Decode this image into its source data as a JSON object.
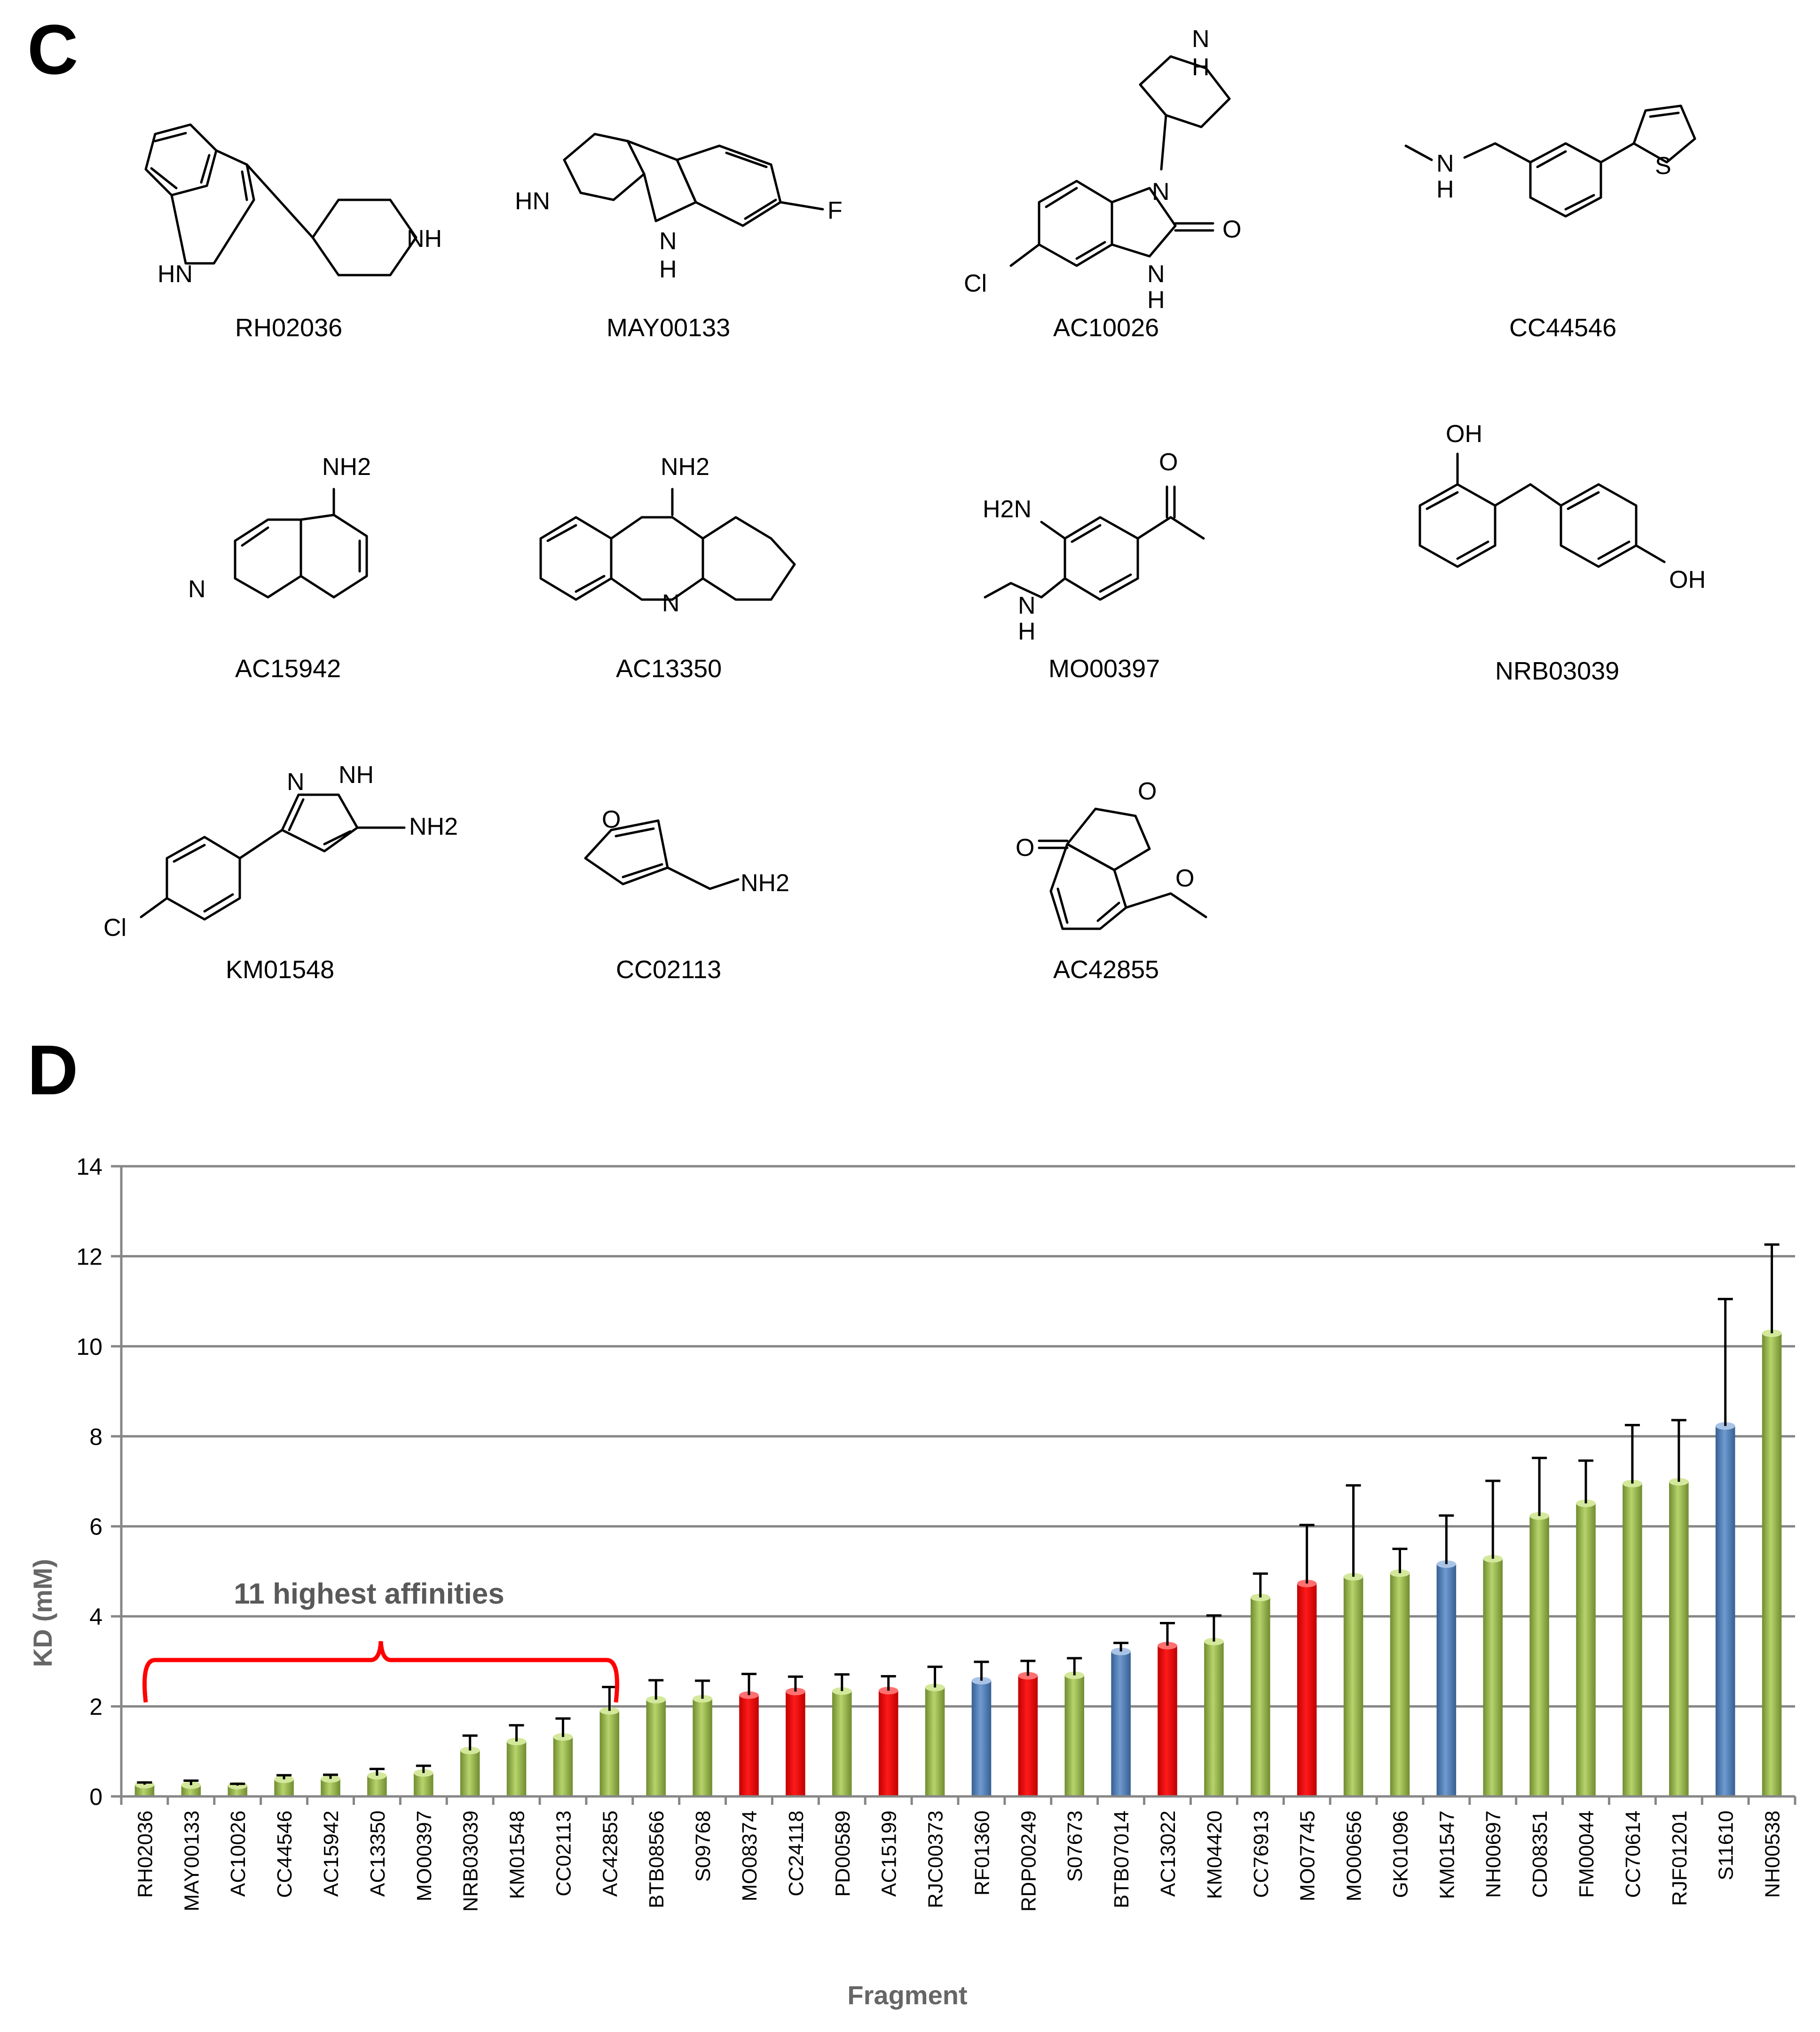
{
  "panel_c": {
    "letter": "C",
    "molecules": [
      {
        "id": "RH02036",
        "atoms": [
          "NH",
          "HN"
        ]
      },
      {
        "id": "MAY00133",
        "atoms": [
          "HN",
          "F",
          "N",
          "H"
        ]
      },
      {
        "id": "AC10026",
        "atoms": [
          "N",
          "H",
          "N",
          "Cl",
          "O",
          "N",
          "H"
        ]
      },
      {
        "id": "CC44546",
        "atoms": [
          "N",
          "H",
          "S"
        ]
      },
      {
        "id": "AC15942",
        "atoms": [
          "NH2",
          "N"
        ]
      },
      {
        "id": "AC13350",
        "atoms": [
          "NH2",
          "N"
        ]
      },
      {
        "id": "MO00397",
        "atoms": [
          "O",
          "H2N",
          "N",
          "H"
        ]
      },
      {
        "id": "NRB03039",
        "atoms": [
          "OH",
          "OH"
        ]
      },
      {
        "id": "KM01548",
        "atoms": [
          "N",
          "NH",
          "NH2",
          "Cl"
        ]
      },
      {
        "id": "CC02113",
        "atoms": [
          "O",
          "NH2"
        ]
      },
      {
        "id": "AC42855",
        "atoms": [
          "O",
          "O",
          "O"
        ]
      }
    ]
  },
  "panel_d": {
    "letter": "D",
    "annotation": "11 highest affinities",
    "colors": {
      "green": "#9bbb59",
      "red": "#ff0000",
      "blue": "#4f81bd",
      "grid": "#868686",
      "error": "#000000",
      "brace": "#ff0000"
    }
  },
  "chart_data": {
    "type": "bar",
    "title": "",
    "xlabel": "Fragment",
    "ylabel": "KD (mM)",
    "ylim": [
      0,
      14
    ],
    "yticks": [
      0,
      2,
      4,
      6,
      8,
      10,
      12,
      14
    ],
    "grid": true,
    "categories": [
      "RH02036",
      "MAY00133",
      "AC10026",
      "CC44546",
      "AC15942",
      "AC13350",
      "MO00397",
      "NRB03039",
      "KM01548",
      "CC02113",
      "AC42855",
      "BTB08566",
      "S09768",
      "MO08374",
      "CC24118",
      "PD00589",
      "AC15199",
      "RJC00373",
      "RF01360",
      "RDP00249",
      "S07673",
      "BTB07014",
      "AC13022",
      "KM04420",
      "CC76913",
      "MO07745",
      "MO00656",
      "GK01096",
      "KM01547",
      "NH00697",
      "CD08351",
      "FM00044",
      "CC70614",
      "RJF01201",
      "S11610",
      "NH00538"
    ],
    "values": [
      0.26,
      0.25,
      0.24,
      0.38,
      0.39,
      0.46,
      0.52,
      1.02,
      1.22,
      1.32,
      1.9,
      2.15,
      2.17,
      2.25,
      2.33,
      2.34,
      2.35,
      2.42,
      2.57,
      2.68,
      2.69,
      3.22,
      3.35,
      3.44,
      4.42,
      4.73,
      4.88,
      4.96,
      5.16,
      5.28,
      6.23,
      6.51,
      6.95,
      6.99,
      8.23,
      10.29
    ],
    "errors": [
      0.05,
      0.1,
      0.04,
      0.09,
      0.09,
      0.15,
      0.16,
      0.33,
      0.36,
      0.41,
      0.53,
      0.43,
      0.4,
      0.47,
      0.33,
      0.37,
      0.32,
      0.46,
      0.42,
      0.33,
      0.38,
      0.19,
      0.5,
      0.58,
      0.53,
      1.3,
      2.03,
      0.54,
      1.08,
      1.73,
      1.29,
      0.95,
      1.3,
      1.37,
      2.82,
      1.97
    ],
    "bar_colors": [
      "green",
      "green",
      "green",
      "green",
      "green",
      "green",
      "green",
      "green",
      "green",
      "green",
      "green",
      "green",
      "green",
      "red",
      "red",
      "green",
      "red",
      "green",
      "blue",
      "red",
      "green",
      "blue",
      "red",
      "green",
      "green",
      "red",
      "green",
      "green",
      "blue",
      "green",
      "green",
      "green",
      "green",
      "green",
      "blue",
      "green"
    ]
  }
}
